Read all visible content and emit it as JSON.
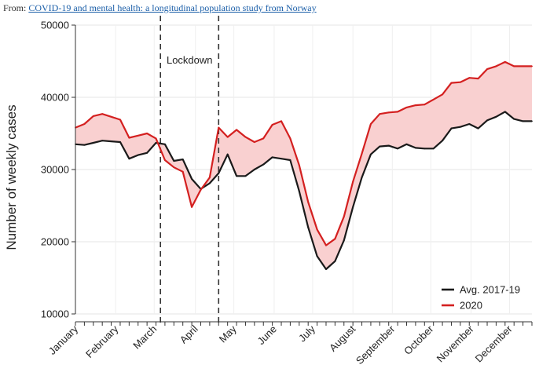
{
  "source": {
    "prefix": "From:",
    "link_text": "COVID-19 and mental health: a longitudinal population study from Norway"
  },
  "chart_data": {
    "type": "line",
    "title": "",
    "xlabel": "",
    "ylabel": "Number of weekly cases",
    "ylim": [
      10000,
      50000
    ],
    "yticks": [
      10000,
      20000,
      30000,
      40000,
      50000
    ],
    "ytick_labels": [
      "10000",
      "20000",
      "30000",
      "40000",
      "50000"
    ],
    "xlim": [
      1,
      52
    ],
    "x_tick_labels": [
      {
        "label": "January",
        "week": 1
      },
      {
        "label": "February",
        "week": 5.5
      },
      {
        "label": "March",
        "week": 9.8
      },
      {
        "label": "April",
        "week": 14.4
      },
      {
        "label": "May",
        "week": 18.7
      },
      {
        "label": "June",
        "week": 23.2
      },
      {
        "label": "July",
        "week": 27.5
      },
      {
        "label": "August",
        "week": 32
      },
      {
        "label": "September",
        "week": 36.4
      },
      {
        "label": "October",
        "week": 40.7
      },
      {
        "label": "November",
        "week": 45.2
      },
      {
        "label": "December",
        "week": 49.5
      }
    ],
    "x": [
      1,
      2,
      3,
      4,
      5,
      6,
      7,
      8,
      9,
      10,
      11,
      12,
      13,
      14,
      15,
      16,
      17,
      18,
      19,
      20,
      21,
      22,
      23,
      24,
      25,
      26,
      27,
      28,
      29,
      30,
      31,
      32,
      33,
      34,
      35,
      36,
      37,
      38,
      39,
      40,
      41,
      42,
      43,
      44,
      45,
      46,
      47,
      48,
      49,
      50,
      51,
      52
    ],
    "series": [
      {
        "name": "Avg. 2017-19",
        "color": "#1a1a1a",
        "values": [
          33500,
          33400,
          33700,
          34000,
          33900,
          33800,
          31500,
          32000,
          32300,
          33700,
          33500,
          31200,
          31400,
          28700,
          27300,
          28100,
          29500,
          32100,
          29100,
          29100,
          30000,
          30700,
          31700,
          31500,
          31300,
          27000,
          22000,
          18000,
          16200,
          17300,
          20200,
          24800,
          28900,
          32100,
          33200,
          33300,
          32900,
          33500,
          33000,
          32900,
          32900,
          34000,
          35700,
          35900,
          36300,
          35700,
          36800,
          37300,
          38000,
          37000,
          36700,
          36700
        ]
      },
      {
        "name": "2020",
        "color": "#d42020",
        "values": [
          35800,
          36300,
          37400,
          37700,
          37300,
          36900,
          34400,
          34700,
          35000,
          34300,
          31300,
          30300,
          29700,
          24800,
          27200,
          28900,
          35800,
          34500,
          35500,
          34500,
          33800,
          34300,
          36200,
          36700,
          34300,
          30600,
          25500,
          21700,
          19500,
          20400,
          23500,
          28300,
          32200,
          36300,
          37700,
          37900,
          38000,
          38600,
          38900,
          39000,
          39700,
          40400,
          42000,
          42100,
          42700,
          42600,
          43900,
          44300,
          44900,
          44300,
          44300,
          44300
        ]
      }
    ],
    "fill_between": {
      "color": "#f9d0d0",
      "label": ""
    },
    "lockdown": {
      "label": "Lockdown",
      "start_week": 10.5,
      "end_week": 17
    },
    "legend_position": "lower-right"
  }
}
